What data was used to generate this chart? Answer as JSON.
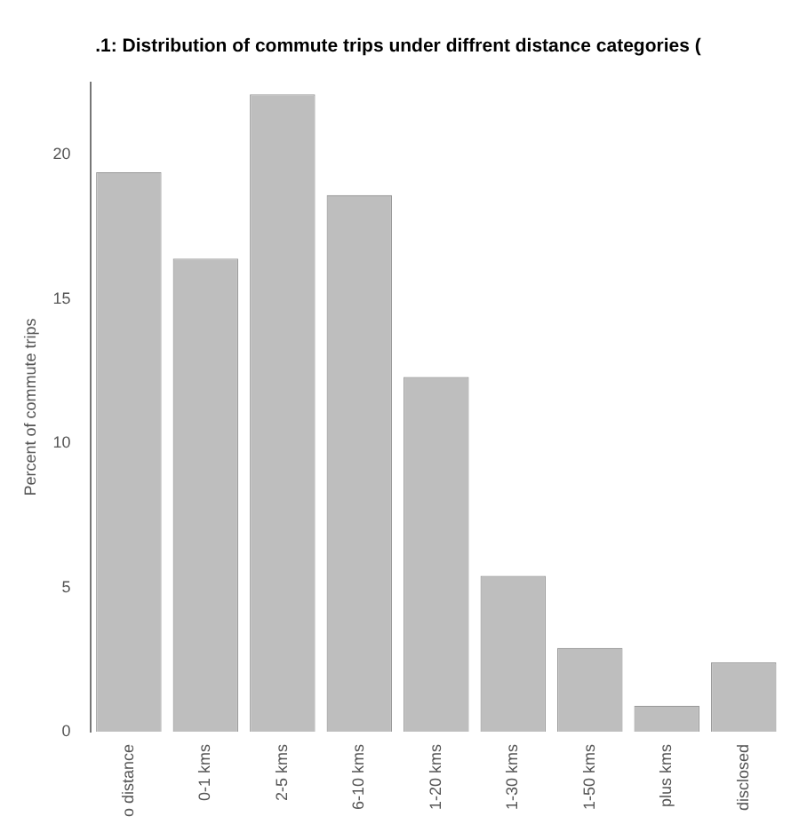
{
  "chart_data": {
    "type": "bar",
    "title": ".1: Distribution of commute trips under diffrent distance categories (",
    "ylabel": "Percent of commute trips",
    "categories": [
      "o distance",
      "0-1 kms",
      "2-5 kms",
      "6-10 kms",
      "1-20 kms",
      "1-30 kms",
      "1-50 kms",
      "plus kms",
      "disclosed"
    ],
    "values": [
      19.4,
      16.4,
      22.1,
      18.6,
      12.3,
      5.4,
      2.9,
      0.9,
      2.4
    ],
    "color": "#bebebe",
    "ylim": [
      0,
      22.5
    ],
    "yticks": [
      0,
      5,
      10,
      15,
      20
    ],
    "grid": false,
    "legend": false
  }
}
